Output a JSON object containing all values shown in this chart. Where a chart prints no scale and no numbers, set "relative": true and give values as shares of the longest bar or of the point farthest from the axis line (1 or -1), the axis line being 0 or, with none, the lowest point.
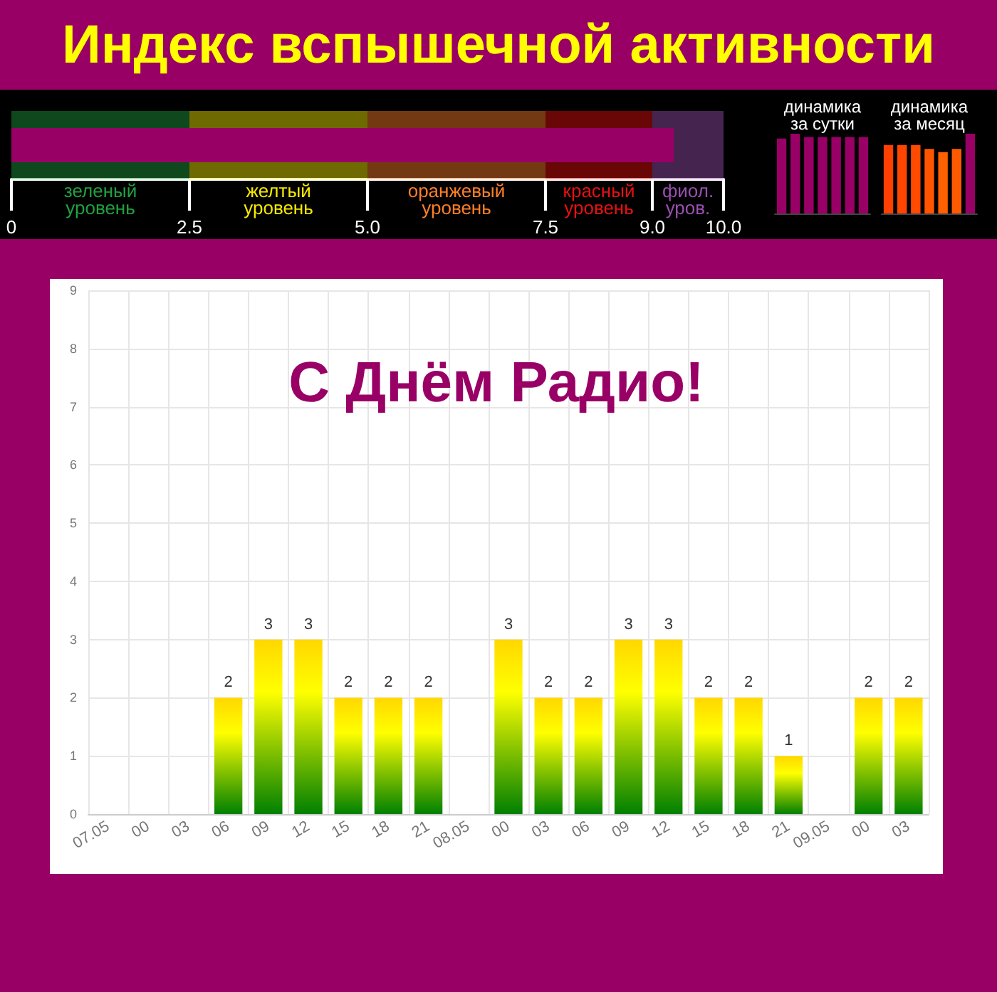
{
  "chart_data": [
    {
      "type": "bar",
      "title": "Индекс вспышечной активности",
      "orientation": "horizontal",
      "categories": [
        null
      ],
      "values": [
        9.3
      ],
      "color": "#990066",
      "xlim": [
        0,
        10
      ],
      "xticks": [
        0,
        2.5,
        {
          "value": 5,
          "label": "5.0"
        },
        7.5,
        {
          "value": 9,
          "label": "9.0"
        },
        {
          "value": 10,
          "label": "10.0"
        }
      ],
      "bands": [
        {
          "axis": "x",
          "from": 0,
          "to": 2.5,
          "label": "зеленый уровень",
          "color": "#22a040"
        },
        {
          "axis": "x",
          "from": 2.5,
          "to": 5,
          "label": "желтый уровень",
          "color": "#f5e800"
        },
        {
          "axis": "x",
          "from": 5,
          "to": 7.5,
          "label": "оранжевый уровень",
          "color": "#ff7f27"
        },
        {
          "axis": "x",
          "from": 7.5,
          "to": 9,
          "label": "красный уровень",
          "color": "#e81010"
        },
        {
          "axis": "x",
          "from": 9,
          "to": 10,
          "label": "фиол. уров.",
          "color": "#9a4fb0"
        }
      ]
    },
    {
      "type": "bar",
      "title": "динамика за сутки",
      "relative": true,
      "categories": [
        null,
        null,
        null,
        null,
        null,
        null,
        null
      ],
      "values": [
        0.94,
        1,
        0.96,
        0.96,
        0.96,
        0.96,
        0.96
      ],
      "color": "#990066"
    },
    {
      "type": "bar",
      "title": "динамика за месяц",
      "relative": true,
      "categories": [
        null,
        null,
        null,
        null,
        null,
        null,
        null
      ],
      "values": [
        0.86,
        0.86,
        0.86,
        0.81,
        0.77,
        0.81,
        1
      ],
      "colors": [
        "#ff4000",
        "#ff4500",
        "#ff4a00",
        "#ff5500",
        "#ff6000",
        "#ff5a00",
        "#990066"
      ]
    },
    {
      "type": "bar",
      "title": "С Днём Радио!",
      "categories": [
        "07.05",
        "00",
        "03",
        "06",
        "09",
        "12",
        "15",
        "18",
        "21",
        "08.05",
        "00",
        "03",
        "06",
        "09",
        "12",
        "15",
        "18",
        "21",
        "09.05",
        "00",
        "03"
      ],
      "values": [
        0,
        0,
        0,
        2,
        3,
        3,
        2,
        2,
        2,
        0,
        3,
        2,
        2,
        3,
        3,
        2,
        2,
        1,
        0,
        2,
        2
      ],
      "value_labels": [
        null,
        null,
        null,
        "2",
        "3",
        "3",
        "2",
        "2",
        "2",
        null,
        "3",
        "2",
        "2",
        "3",
        "3",
        "2",
        "2",
        "1",
        null,
        "2",
        "2"
      ],
      "color": "#008000",
      "ylim": [
        0,
        9
      ],
      "yticks": [
        0,
        1,
        2,
        3,
        4,
        5,
        6,
        7,
        8,
        9
      ],
      "grid": true
    }
  ]
}
